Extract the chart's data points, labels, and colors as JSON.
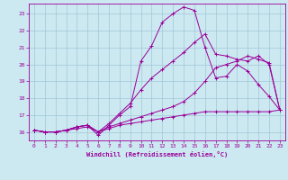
{
  "xlabel": "Windchill (Refroidissement éolien,°C)",
  "bg_color": "#cce8f0",
  "grid_color": "#a0c8d8",
  "line_color": "#990099",
  "xlim": [
    -0.5,
    23.5
  ],
  "ylim": [
    15.5,
    23.6
  ],
  "yticks": [
    16,
    17,
    18,
    19,
    20,
    21,
    22,
    23
  ],
  "xticks": [
    0,
    1,
    2,
    3,
    4,
    5,
    6,
    7,
    8,
    9,
    10,
    11,
    12,
    13,
    14,
    15,
    16,
    17,
    18,
    19,
    20,
    21,
    22,
    23
  ],
  "series": [
    [
      16.1,
      16.0,
      16.0,
      16.1,
      16.3,
      16.4,
      15.8,
      16.4,
      17.0,
      17.5,
      20.2,
      21.1,
      22.5,
      23.0,
      23.4,
      23.2,
      21.0,
      19.2,
      19.3,
      20.0,
      19.6,
      18.8,
      18.1,
      17.3
    ],
    [
      16.1,
      16.0,
      16.0,
      16.1,
      16.3,
      16.4,
      16.0,
      16.5,
      17.1,
      17.7,
      18.5,
      19.2,
      19.7,
      20.2,
      20.7,
      21.3,
      21.8,
      20.6,
      20.5,
      20.3,
      20.2,
      20.5,
      20.0,
      17.3
    ],
    [
      16.1,
      16.0,
      16.0,
      16.1,
      16.3,
      16.4,
      16.0,
      16.3,
      16.5,
      16.7,
      16.9,
      17.1,
      17.3,
      17.5,
      17.8,
      18.3,
      19.0,
      19.8,
      20.0,
      20.2,
      20.5,
      20.3,
      20.1,
      17.3
    ],
    [
      16.1,
      16.0,
      16.0,
      16.1,
      16.2,
      16.3,
      16.0,
      16.2,
      16.4,
      16.5,
      16.6,
      16.7,
      16.8,
      16.9,
      17.0,
      17.1,
      17.2,
      17.2,
      17.2,
      17.2,
      17.2,
      17.2,
      17.2,
      17.3
    ]
  ]
}
